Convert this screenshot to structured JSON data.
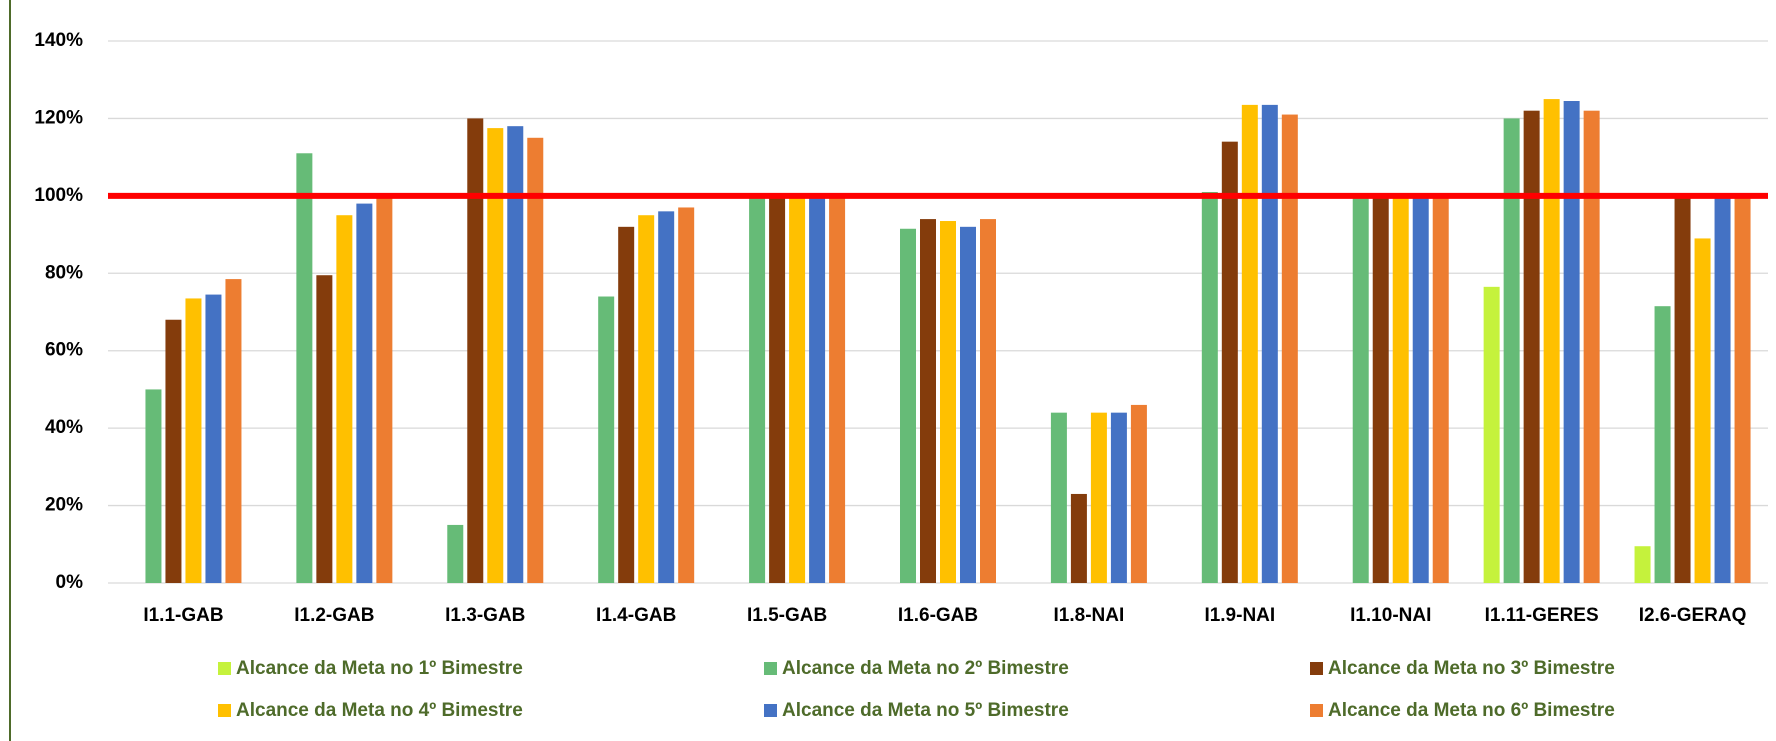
{
  "chart_data": {
    "type": "bar",
    "categories": [
      "I1.1-GAB",
      "I1.2-GAB",
      "I1.3-GAB",
      "I1.4-GAB",
      "I1.5-GAB",
      "I1.6-GAB",
      "I1.8-NAI",
      "I1.9-NAI",
      "I1.10-NAI",
      "I1.11-GERES",
      "I2.6-GERAQ"
    ],
    "series": [
      {
        "name": "Alcance da Meta no 1º Bimestre",
        "color": "#c5f23c",
        "values": [
          null,
          null,
          null,
          null,
          null,
          null,
          null,
          null,
          null,
          76.5,
          9.5
        ]
      },
      {
        "name": "Alcance da Meta no 2º Bimestre",
        "color": "#66bb77",
        "values": [
          50,
          111,
          15,
          74,
          100,
          91.5,
          44,
          101,
          100,
          120,
          71.5
        ]
      },
      {
        "name": "Alcance da Meta no 3º Bimestre",
        "color": "#843c0c",
        "values": [
          68,
          79.5,
          120,
          92,
          100,
          94,
          23,
          114,
          100,
          122,
          100
        ]
      },
      {
        "name": "Alcance da Meta no 4º Bimestre",
        "color": "#ffc000",
        "values": [
          73.5,
          95,
          117.5,
          95,
          100,
          93.5,
          44,
          123.5,
          100,
          125,
          89
        ]
      },
      {
        "name": "Alcance da Meta no 5º Bimestre",
        "color": "#4472c4",
        "values": [
          74.5,
          98,
          118,
          96,
          100,
          92,
          44,
          123.5,
          100,
          124.5,
          100
        ]
      },
      {
        "name": "Alcance da Meta no 6º Bimestre",
        "color": "#ed7d31",
        "values": [
          78.5,
          100,
          115,
          97,
          100,
          94,
          46,
          121,
          100,
          122,
          100
        ]
      }
    ],
    "target": 100,
    "target_color": "#ff0000",
    "ylim": [
      0,
      140
    ],
    "yticks": [
      {
        "value": 0,
        "label": "0%"
      },
      {
        "value": 20,
        "label": "20%"
      },
      {
        "value": 40,
        "label": "40%"
      },
      {
        "value": 60,
        "label": "60%"
      },
      {
        "value": 80,
        "label": "80%"
      },
      {
        "value": 100,
        "label": "100%"
      },
      {
        "value": 120,
        "label": "120%"
      },
      {
        "value": 140,
        "label": "140%"
      }
    ],
    "grid": true,
    "legend": "bottom"
  }
}
